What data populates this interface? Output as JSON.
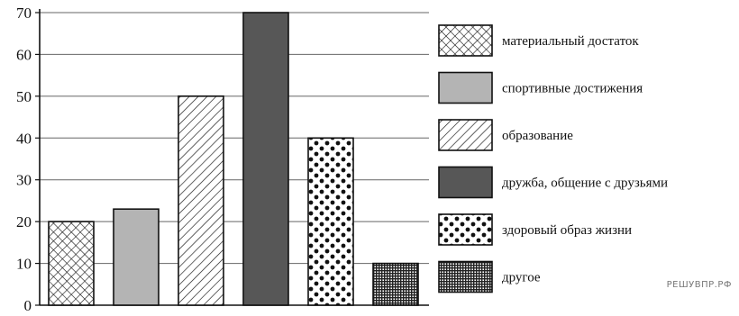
{
  "chart_data": {
    "type": "bar",
    "categories": [
      "материальный достаток",
      "спортивные достижения",
      "образование",
      "дружба, общение с друзьями",
      "здоровый образ жизни",
      "другое"
    ],
    "values": [
      20,
      23,
      50,
      70,
      40,
      10
    ],
    "ylim": [
      0,
      70
    ],
    "yticks": [
      0,
      10,
      20,
      30,
      40,
      50,
      60,
      70
    ],
    "yticks_labels": [
      "0",
      "10",
      "20",
      "30",
      "40",
      "50",
      "60",
      "70"
    ],
    "grid": "horizontal",
    "legend": "right",
    "patterns": [
      "crosshatch",
      "light-gray",
      "diagonal-lines",
      "dark-gray",
      "dots",
      "fine-grid"
    ],
    "colors": {
      "light_gray": "#b4b4b4",
      "dark_gray": "#575757",
      "stroke": "#111111",
      "grid": "#666666"
    }
  },
  "watermark": "РЕШУВПР.РФ"
}
